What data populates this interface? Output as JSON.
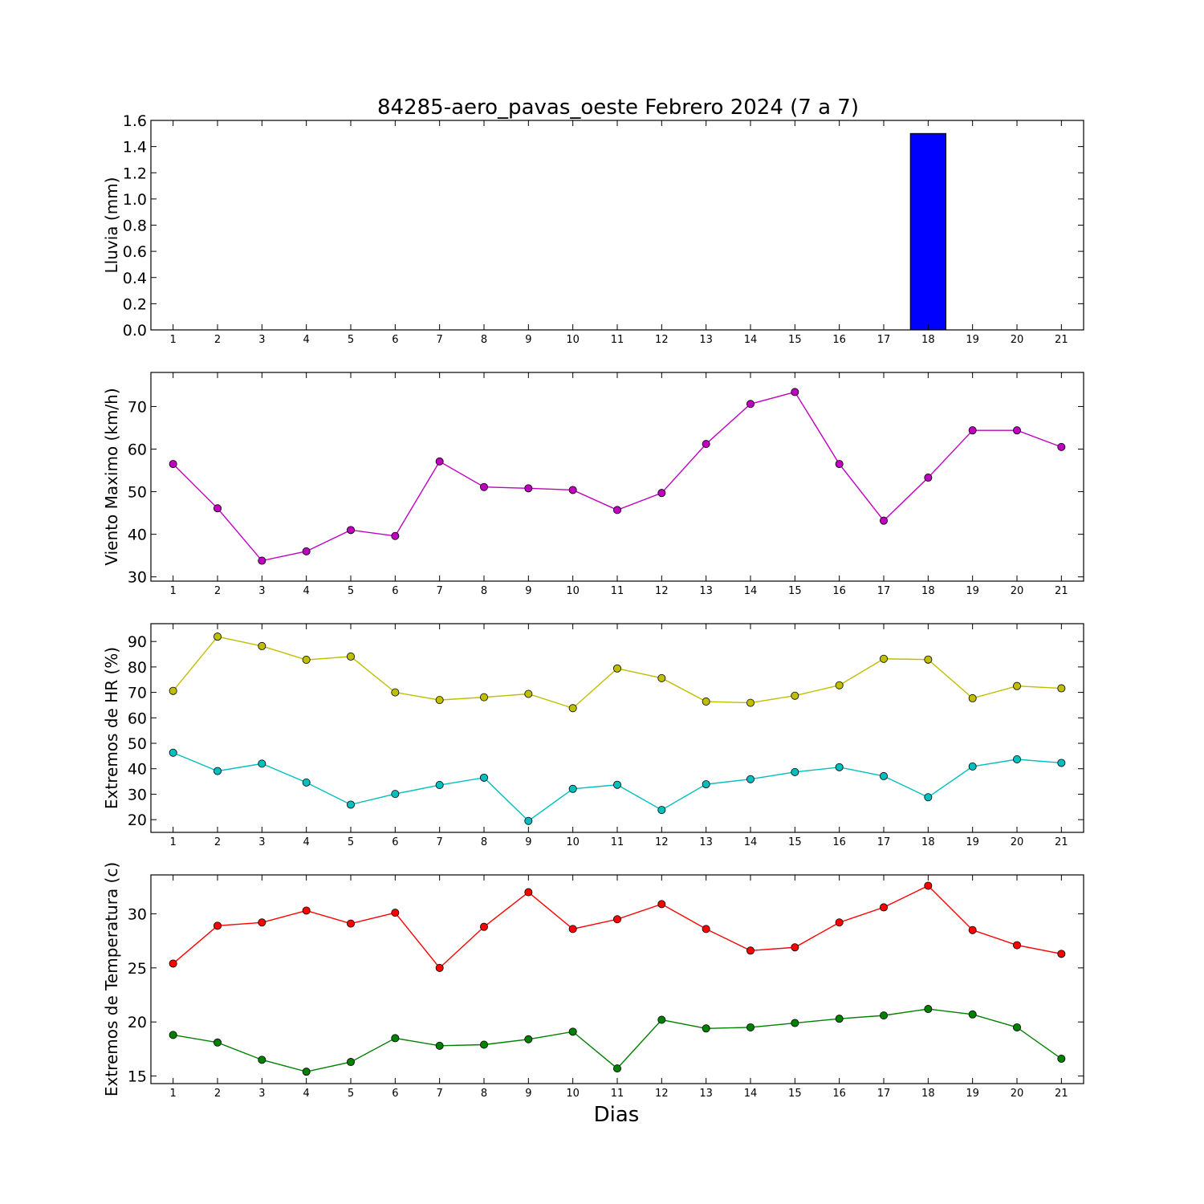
{
  "title": "84285-aero_pavas_oeste Febrero 2024  (7 a 7)",
  "xlabel": "Dias",
  "chart_data": [
    {
      "type": "bar",
      "ylabel": "Lluvia (mm)",
      "categories": [
        1,
        2,
        3,
        4,
        5,
        6,
        7,
        8,
        9,
        10,
        11,
        12,
        13,
        14,
        15,
        16,
        17,
        18,
        19,
        20,
        21
      ],
      "ylim": [
        0,
        1.6
      ],
      "yticks": [
        0.0,
        0.2,
        0.4,
        0.6,
        0.8,
        1.0,
        1.2,
        1.4,
        1.6
      ],
      "ytick_labels": [
        "0.0",
        "0.2",
        "0.4",
        "0.6",
        "0.8",
        "1.0",
        "1.2",
        "1.4",
        "1.6"
      ],
      "series": [
        {
          "values": [
            0,
            0,
            0,
            0,
            0,
            0,
            0,
            0,
            0,
            0,
            0,
            0,
            0,
            0,
            0,
            0,
            0,
            1.5,
            0,
            0,
            0
          ],
          "color": "#0000ff"
        }
      ],
      "grid": false
    },
    {
      "type": "line",
      "ylabel": "Viento Maximo (km/h)",
      "categories": [
        1,
        2,
        3,
        4,
        5,
        6,
        7,
        8,
        9,
        10,
        11,
        12,
        13,
        14,
        15,
        16,
        17,
        18,
        19,
        20,
        21
      ],
      "ylim": [
        29,
        78
      ],
      "yticks": [
        30,
        40,
        50,
        60,
        70
      ],
      "ytick_labels": [
        "30",
        "40",
        "50",
        "60",
        "70"
      ],
      "series": [
        {
          "values": [
            56.5,
            46.1,
            33.8,
            36.0,
            41.0,
            39.6,
            57.1,
            51.1,
            50.8,
            50.4,
            45.7,
            49.7,
            61.2,
            70.6,
            73.4,
            56.5,
            43.2,
            53.3,
            64.4,
            64.4,
            60.5
          ],
          "color": "#bf00bf"
        }
      ],
      "grid": false
    },
    {
      "type": "line",
      "ylabel": "Extremos de HR (%)",
      "categories": [
        1,
        2,
        3,
        4,
        5,
        6,
        7,
        8,
        9,
        10,
        11,
        12,
        13,
        14,
        15,
        16,
        17,
        18,
        19,
        20,
        21
      ],
      "ylim": [
        15,
        97
      ],
      "yticks": [
        20,
        30,
        40,
        50,
        60,
        70,
        80,
        90
      ],
      "ytick_labels": [
        "20",
        "30",
        "40",
        "50",
        "60",
        "70",
        "80",
        "90"
      ],
      "series": [
        {
          "values": [
            70.6,
            91.9,
            88.2,
            82.8,
            84.1,
            70.0,
            67.0,
            68.1,
            69.4,
            63.8,
            79.4,
            75.6,
            66.4,
            65.9,
            68.7,
            72.8,
            83.2,
            82.9,
            67.7,
            72.5,
            71.6
          ],
          "color": "#bfbf00"
        },
        {
          "values": [
            46.3,
            39.1,
            42.0,
            34.6,
            25.9,
            30.1,
            33.6,
            36.5,
            19.5,
            32.1,
            33.7,
            23.8,
            33.9,
            35.9,
            38.7,
            40.6,
            37.1,
            28.8,
            40.9,
            43.7,
            42.3
          ],
          "color": "#00bfbf"
        }
      ],
      "grid": false
    },
    {
      "type": "line",
      "ylabel": "Extremos de Temperatura (c)",
      "categories": [
        1,
        2,
        3,
        4,
        5,
        6,
        7,
        8,
        9,
        10,
        11,
        12,
        13,
        14,
        15,
        16,
        17,
        18,
        19,
        20,
        21
      ],
      "ylim": [
        14.3,
        33.6
      ],
      "yticks": [
        15,
        20,
        25,
        30
      ],
      "ytick_labels": [
        "15",
        "20",
        "25",
        "30"
      ],
      "series": [
        {
          "values": [
            25.4,
            28.9,
            29.2,
            30.3,
            29.1,
            30.1,
            25.0,
            28.8,
            32.0,
            28.6,
            29.5,
            30.9,
            28.6,
            26.6,
            26.9,
            29.2,
            30.6,
            32.6,
            28.5,
            27.1,
            26.3
          ],
          "color": "#ff0000"
        },
        {
          "values": [
            18.8,
            18.1,
            16.5,
            15.4,
            16.3,
            18.5,
            17.8,
            17.9,
            18.4,
            19.1,
            15.7,
            20.2,
            19.4,
            19.5,
            19.9,
            20.3,
            20.6,
            21.2,
            20.7,
            19.5,
            16.6
          ],
          "color": "#008000"
        }
      ],
      "grid": false
    }
  ]
}
